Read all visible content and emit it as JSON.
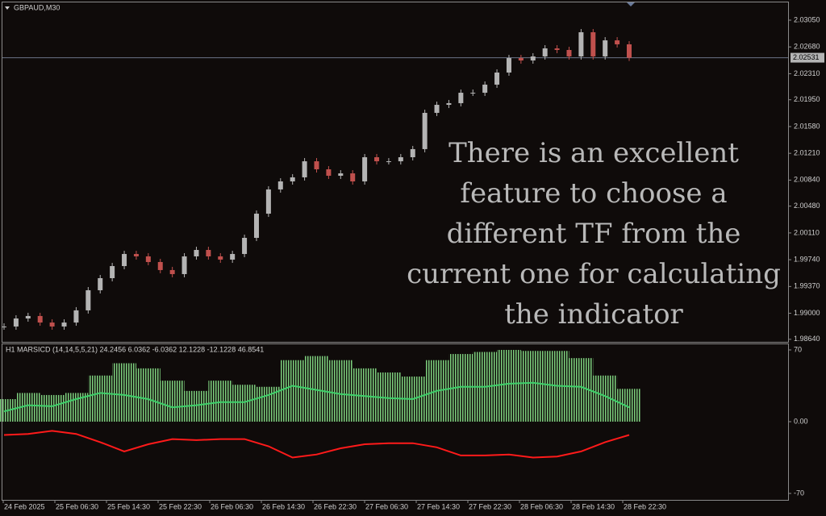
{
  "header": {
    "symbol": "GBPAUD,M30"
  },
  "price_chart": {
    "type": "candlestick",
    "closes": [
      1.98817,
      1.98928,
      1.98962,
      1.98872,
      1.98817,
      1.98872,
      1.9904,
      1.99318,
      1.99485,
      1.99652,
      1.99819,
      1.99786,
      1.99708,
      1.99597,
      1.99541,
      1.99786,
      1.99875,
      1.99786,
      1.99741,
      1.99819,
      2.00042,
      2.00376,
      2.00711,
      2.00822,
      2.00878,
      2.011,
      2.00989,
      2.009,
      2.00933,
      2.00822,
      2.01156,
      2.011,
      2.011,
      2.01156,
      2.01268,
      2.01769,
      2.0188,
      2.01903,
      2.02047,
      2.02047,
      2.02159,
      2.02326,
      2.02526,
      2.02493,
      2.02549,
      2.0266,
      2.02638,
      2.02549,
      2.02883,
      2.02549,
      2.02771,
      2.02716,
      2.02531
    ],
    "up_color": "#b4b4b4",
    "down_color": "#c0504d",
    "ylim": [
      1.98605,
      2.03295
    ],
    "yticks": [
      {
        "value": 2.0305,
        "label": "2.03050"
      },
      {
        "value": 2.0268,
        "label": "2.02680"
      },
      {
        "value": 2.0231,
        "label": "2.02310"
      },
      {
        "value": 2.0195,
        "label": "2.01950"
      },
      {
        "value": 2.0158,
        "label": "2.01580"
      },
      {
        "value": 2.0121,
        "label": "2.01210"
      },
      {
        "value": 2.0084,
        "label": "2.00840"
      },
      {
        "value": 2.0048,
        "label": "2.00480"
      },
      {
        "value": 2.0011,
        "label": "2.00110"
      },
      {
        "value": 1.9974,
        "label": "1.99740"
      },
      {
        "value": 1.9937,
        "label": "1.99370"
      },
      {
        "value": 1.99,
        "label": "1.99000"
      },
      {
        "value": 1.9864,
        "label": "1.98640"
      }
    ],
    "current_price": {
      "value": 2.02531,
      "label": "2.02531"
    }
  },
  "indicator": {
    "label": "H1 MARSICD (14,14,5,5,21) 24.2456 6.0362 -6.0362 12.1228 -12.1228 46.8541",
    "histogram": [
      22,
      28,
      26,
      28,
      45,
      57,
      52,
      40,
      30,
      40,
      36,
      34,
      60,
      64,
      60,
      52,
      48,
      44,
      60,
      66,
      68,
      70,
      69,
      69,
      62,
      45,
      32
    ],
    "histogram_color": "#7ed07e",
    "upper_line": [
      10,
      16,
      15,
      22,
      28,
      26,
      22,
      14,
      16,
      19,
      19,
      26,
      35,
      31,
      27,
      25,
      23,
      22,
      30,
      34,
      34,
      37,
      38,
      35,
      34,
      25,
      14
    ],
    "upper_color": "#3fcf6a",
    "lower_line": [
      -13,
      -12,
      -9,
      -12,
      -20,
      -29,
      -22,
      -17,
      -18,
      -17,
      -17,
      -24,
      -35,
      -32,
      -26,
      -22,
      -21,
      -21,
      -25,
      -33,
      -33,
      -32,
      -35,
      -34,
      -29,
      -20,
      -13
    ],
    "lower_color": "#ff1a1a",
    "ylim": [
      -76.3,
      75.5
    ],
    "yticks": [
      70,
      {
        "value": 0,
        "label": "0.00"
      },
      -70
    ]
  },
  "time_labels": [
    "24 Feb 2025",
    "25 Feb 06:30",
    "25 Feb 14:30",
    "25 Feb 22:30",
    "26 Feb 06:30",
    "26 Feb 14:30",
    "26 Feb 22:30",
    "27 Feb 06:30",
    "27 Feb 14:30",
    "27 Feb 22:30",
    "28 Feb 06:30",
    "28 Feb 14:30",
    "28 Feb 22:30"
  ],
  "overlay_text": [
    "There is an excellent",
    "feature to choose a",
    "different TF from the",
    "current one for calculating",
    "the indicator"
  ]
}
